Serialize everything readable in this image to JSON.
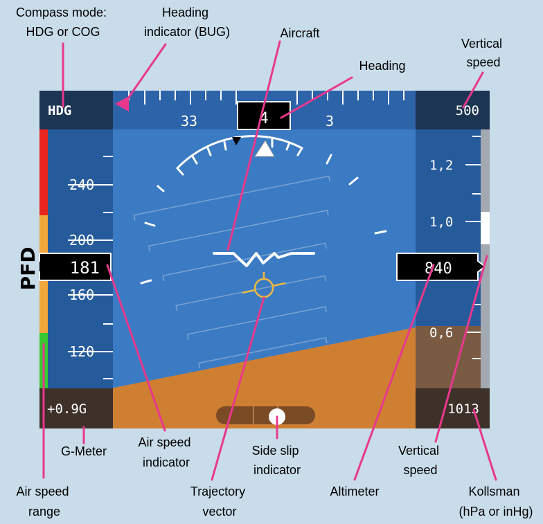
{
  "side_label": "PFD",
  "display": {
    "compass_mode": "HDG",
    "heading_value": "4",
    "heading_scale": {
      "left": "33",
      "right": "3"
    },
    "vertical_speed": "500",
    "g_meter": "+0.9G",
    "kollsman": "1013",
    "airspeed_value": "181",
    "airspeed_ticks": [
      "240",
      "200",
      "160",
      "120"
    ],
    "altimeter_value": "840",
    "altimeter_ticks": [
      "1,2",
      "1,0",
      "0,6"
    ]
  },
  "callouts": {
    "compass_mode": [
      "Compass mode:",
      "HDG or COG"
    ],
    "heading_bug": [
      "Heading",
      "indicator (BUG)"
    ],
    "aircraft": [
      "Aircraft"
    ],
    "heading": [
      "Heading"
    ],
    "vertical_speed_top": [
      "Vertical",
      "speed"
    ],
    "g_meter": [
      "G-Meter"
    ],
    "airspeed_indicator": [
      "Air speed",
      "indicator"
    ],
    "side_slip": [
      "Side slip",
      "indicator"
    ],
    "vertical_speed_bottom": [
      "Vertical",
      "speed"
    ],
    "airspeed_range": [
      "Air speed",
      "range"
    ],
    "trajectory": [
      "Trajectory",
      "vector"
    ],
    "altimeter": [
      "Altimeter"
    ],
    "kollsman": [
      "Kollsman",
      "(hPa or inHg)"
    ]
  },
  "colors": {
    "sky": "#3a7bc4",
    "ground": "#cf7f32",
    "tape": "#265b9b",
    "top_bar": "#2d63a8",
    "corner": "#1c3553",
    "callout_line": "#e8388d",
    "trajectory": "#f0b840",
    "speed_red": "#e8251f",
    "speed_yellow": "#f2a73a",
    "speed_green": "#38c930"
  }
}
